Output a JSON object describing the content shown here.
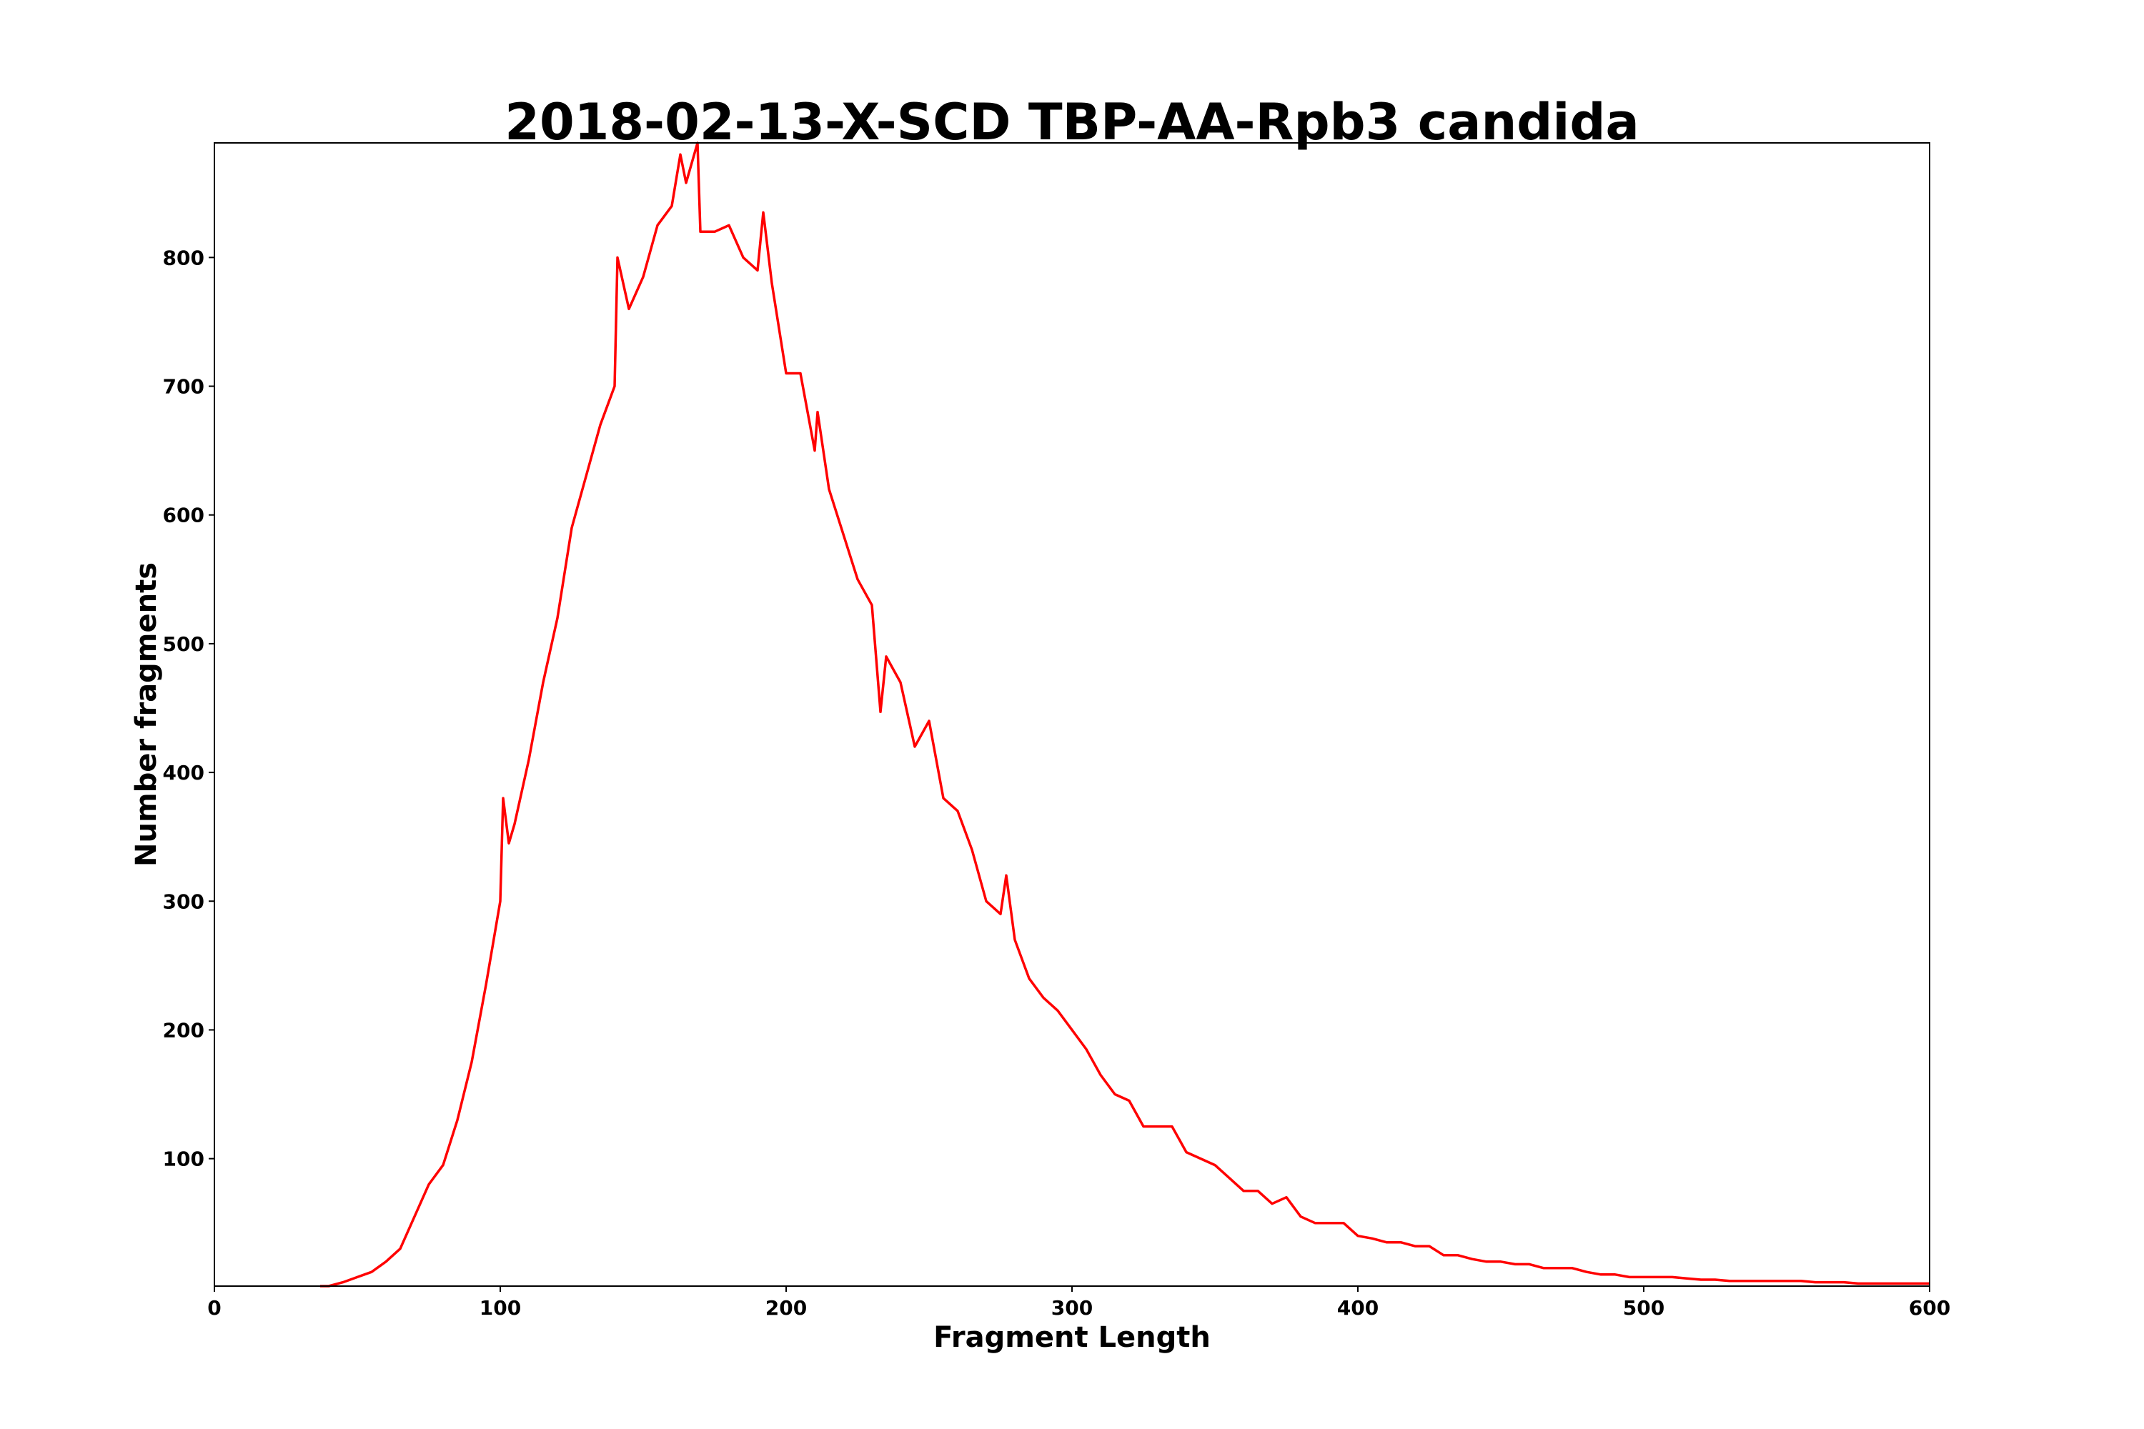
{
  "chart_data": {
    "type": "line",
    "title": "2018-02-13-X-SCD TBP-AA-Rpb3 candida",
    "xlabel": "Fragment Length",
    "ylabel": "Number fragments",
    "xlim": [
      0,
      600
    ],
    "ylim": [
      1,
      889
    ],
    "xticks": [
      "0",
      "100",
      "200",
      "300",
      "400",
      "500",
      "600"
    ],
    "yticks": [
      "100",
      "200",
      "300",
      "400",
      "500",
      "600",
      "700",
      "800"
    ],
    "grid": false,
    "series": [
      {
        "name": "fragments",
        "color": "#ff0000",
        "x": [
          37,
          40,
          45,
          50,
          55,
          60,
          65,
          70,
          75,
          80,
          85,
          90,
          95,
          100,
          101,
          103,
          105,
          110,
          115,
          120,
          125,
          130,
          135,
          140,
          141,
          145,
          150,
          155,
          160,
          163,
          165,
          169,
          170,
          175,
          180,
          185,
          190,
          192,
          195,
          200,
          205,
          210,
          211,
          215,
          220,
          225,
          230,
          233,
          235,
          240,
          245,
          250,
          255,
          260,
          265,
          270,
          275,
          277,
          280,
          285,
          290,
          295,
          300,
          305,
          310,
          315,
          320,
          325,
          330,
          335,
          340,
          345,
          350,
          355,
          360,
          365,
          370,
          375,
          380,
          385,
          390,
          395,
          400,
          405,
          410,
          415,
          420,
          425,
          430,
          435,
          440,
          445,
          450,
          455,
          460,
          465,
          470,
          475,
          480,
          485,
          490,
          495,
          500,
          505,
          510,
          515,
          520,
          525,
          530,
          535,
          540,
          545,
          550,
          555,
          560,
          565,
          570,
          575,
          580,
          585,
          590,
          595,
          600
        ],
        "y": [
          1,
          1,
          4,
          8,
          12,
          20,
          30,
          55,
          80,
          95,
          130,
          175,
          235,
          300,
          380,
          345,
          360,
          410,
          470,
          520,
          590,
          630,
          670,
          700,
          800,
          760,
          785,
          825,
          840,
          880,
          858,
          889,
          820,
          820,
          825,
          800,
          790,
          835,
          780,
          710,
          710,
          650,
          680,
          620,
          585,
          550,
          530,
          447,
          490,
          470,
          420,
          440,
          380,
          370,
          340,
          300,
          290,
          320,
          270,
          240,
          225,
          215,
          200,
          185,
          165,
          150,
          145,
          125,
          125,
          125,
          105,
          100,
          95,
          85,
          75,
          75,
          65,
          70,
          55,
          50,
          50,
          50,
          40,
          38,
          35,
          35,
          32,
          32,
          25,
          25,
          22,
          20,
          20,
          18,
          18,
          15,
          15,
          15,
          12,
          10,
          10,
          8,
          8,
          8,
          8,
          7,
          6,
          6,
          5,
          5,
          5,
          5,
          5,
          5,
          4,
          4,
          4,
          3,
          3,
          3,
          3,
          3,
          3
        ]
      }
    ]
  }
}
